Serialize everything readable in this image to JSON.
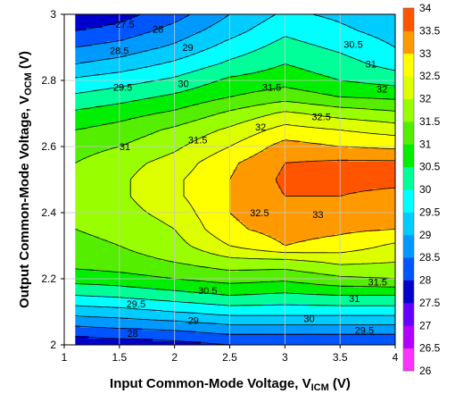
{
  "chart_data": {
    "type": "heatmap",
    "subtype": "filled contour",
    "xlabel": {
      "main": "Input Common-Mode Voltage, V",
      "sub": "ICM",
      "unit": " (V)"
    },
    "ylabel": {
      "main": "Output Common-Mode Voltage, V",
      "sub": "OCM",
      "unit": " (V)"
    },
    "xlim": [
      1,
      4
    ],
    "ylim": [
      2,
      3
    ],
    "xticks": [
      "1",
      "1.5",
      "2",
      "2.5",
      "3",
      "3.5",
      "4"
    ],
    "yticks": [
      "2",
      "2.2",
      "2.4",
      "2.6",
      "2.8",
      "3"
    ],
    "grid": true,
    "colorbar": {
      "position": "right",
      "ticks": [
        "26",
        "26.5",
        "27",
        "27.5",
        "28",
        "28.5",
        "29",
        "29.5",
        "30",
        "30.5",
        "31",
        "31.5",
        "32",
        "32.5",
        "33",
        "33.5",
        "34"
      ],
      "colors": [
        "#ff33ff",
        "#b300ff",
        "#6600ff",
        "#0000cc",
        "#0055ff",
        "#0099ff",
        "#00ccff",
        "#00ffff",
        "#00ff99",
        "#00ee00",
        "#55ee00",
        "#99ff00",
        "#ddff00",
        "#ffff00",
        "#ff9900",
        "#ff5500"
      ]
    },
    "x": [
      1.1,
      1.5,
      2,
      2.5,
      3,
      3.5,
      4
    ],
    "y": [
      2.0,
      2.05,
      2.1,
      2.15,
      2.2,
      2.25,
      2.3,
      2.35,
      2.4,
      2.45,
      2.5,
      2.55,
      2.6,
      2.65,
      2.7,
      2.75,
      2.8,
      2.85,
      2.9,
      2.95,
      3.0
    ],
    "z": [
      [
        27.6,
        27.7,
        27.8,
        28.0,
        28.0,
        28.0,
        28.0
      ],
      [
        28.4,
        28.5,
        28.6,
        28.8,
        28.8,
        28.8,
        28.8
      ],
      [
        29.2,
        29.3,
        29.5,
        29.7,
        29.7,
        29.7,
        29.7
      ],
      [
        30.0,
        30.1,
        30.3,
        30.5,
        30.4,
        30.5,
        30.5
      ],
      [
        30.7,
        30.8,
        31.0,
        31.2,
        31.1,
        31.4,
        31.5
      ],
      [
        31.2,
        31.3,
        31.5,
        31.8,
        31.8,
        32.1,
        32.0
      ],
      [
        31.4,
        31.5,
        31.8,
        32.5,
        33.0,
        32.8,
        32.4
      ],
      [
        31.5,
        31.6,
        32.0,
        32.9,
        33.2,
        33.1,
        33.0
      ],
      [
        31.6,
        31.8,
        32.2,
        33.0,
        33.3,
        33.2,
        33.1
      ],
      [
        31.6,
        31.9,
        32.4,
        33.0,
        33.5,
        33.5,
        33.4
      ],
      [
        31.6,
        31.9,
        32.4,
        33.0,
        33.6,
        33.6,
        33.6
      ],
      [
        31.5,
        31.8,
        32.2,
        32.9,
        33.5,
        33.6,
        33.6
      ],
      [
        31.3,
        31.5,
        31.9,
        32.5,
        33.2,
        33.0,
        32.9
      ],
      [
        31.0,
        31.2,
        31.6,
        32.1,
        32.7,
        32.5,
        32.3
      ],
      [
        30.6,
        30.8,
        31.1,
        31.6,
        32.1,
        31.8,
        31.6
      ],
      [
        30.1,
        30.3,
        30.6,
        31.0,
        31.3,
        31.0,
        30.9
      ],
      [
        29.6,
        29.8,
        30.1,
        30.6,
        30.8,
        30.5,
        30.3
      ],
      [
        29.0,
        29.2,
        29.6,
        30.1,
        30.5,
        30.2,
        29.8
      ],
      [
        28.5,
        28.7,
        29.1,
        29.7,
        30.2,
        29.9,
        29.5
      ],
      [
        28.0,
        28.2,
        28.7,
        29.3,
        29.9,
        29.6,
        29.3
      ],
      [
        27.5,
        27.8,
        28.3,
        29.0,
        29.6,
        29.4,
        29.1
      ]
    ],
    "contour_labels": [
      {
        "text": "27.5",
        "x": 1.55,
        "y": 2.97
      },
      {
        "text": "28",
        "x": 1.85,
        "y": 2.955
      },
      {
        "text": "28.5",
        "x": 1.5,
        "y": 2.89
      },
      {
        "text": "29",
        "x": 2.12,
        "y": 2.9
      },
      {
        "text": "29.5",
        "x": 1.53,
        "y": 2.78
      },
      {
        "text": "30",
        "x": 2.08,
        "y": 2.79
      },
      {
        "text": "30.5",
        "x": 3.62,
        "y": 2.91
      },
      {
        "text": "30",
        "x": 4.22,
        "y": 2.92
      },
      {
        "text": "31",
        "x": 3.78,
        "y": 2.85
      },
      {
        "text": "31.5",
        "x": 2.88,
        "y": 2.78
      },
      {
        "text": "32",
        "x": 3.88,
        "y": 2.775
      },
      {
        "text": "32.5",
        "x": 3.33,
        "y": 2.69
      },
      {
        "text": "31",
        "x": 1.55,
        "y": 2.6
      },
      {
        "text": "31.5",
        "x": 2.21,
        "y": 2.62
      },
      {
        "text": "32",
        "x": 2.78,
        "y": 2.66
      },
      {
        "text": "32.5",
        "x": 2.77,
        "y": 2.4
      },
      {
        "text": "33",
        "x": 3.3,
        "y": 2.395
      },
      {
        "text": "33",
        "x": 4.29,
        "y": 2.42
      },
      {
        "text": "32",
        "x": 4.34,
        "y": 2.225
      },
      {
        "text": "31.5",
        "x": 3.84,
        "y": 2.19
      },
      {
        "text": "30.5",
        "x": 2.3,
        "y": 2.165
      },
      {
        "text": "31",
        "x": 3.63,
        "y": 2.14
      },
      {
        "text": "29.5",
        "x": 1.65,
        "y": 2.125
      },
      {
        "text": "30.5",
        "x": 4.3,
        "y": 2.115
      },
      {
        "text": "29",
        "x": 2.17,
        "y": 2.075
      },
      {
        "text": "30",
        "x": 3.22,
        "y": 2.08
      },
      {
        "text": "29.5",
        "x": 3.72,
        "y": 2.045
      },
      {
        "text": "28",
        "x": 1.62,
        "y": 2.035
      }
    ]
  }
}
